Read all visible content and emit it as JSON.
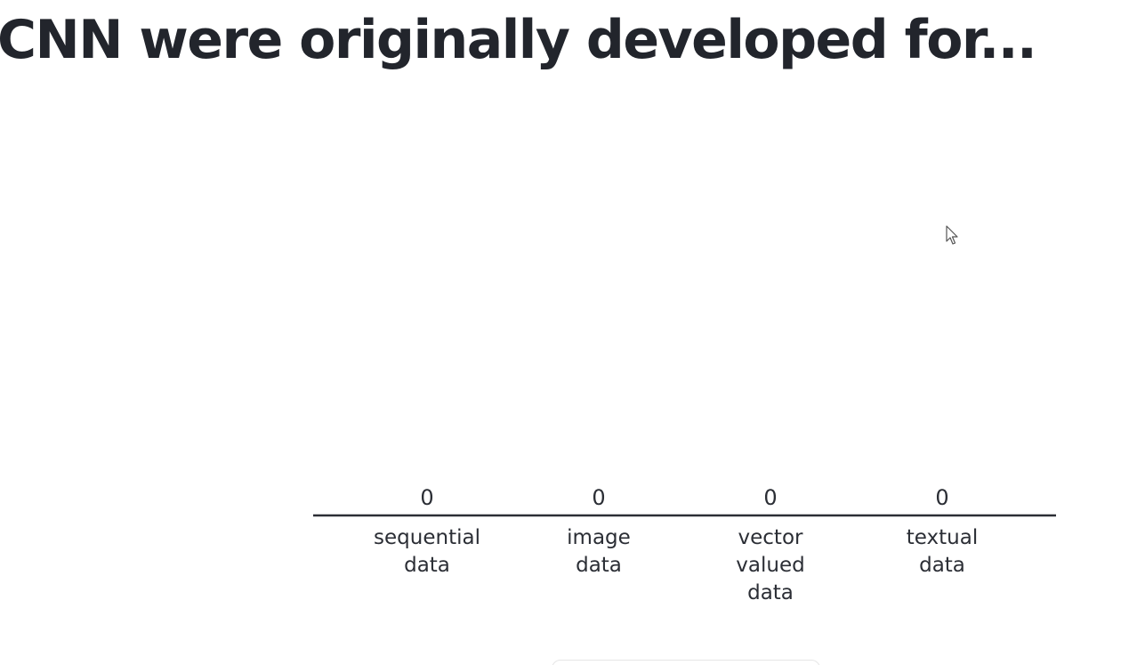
{
  "slide": {
    "title": "CNN were originally developed for..."
  },
  "chart_data": {
    "type": "bar",
    "categories": [
      "sequential data",
      "image data",
      "vector valued data",
      "textual data"
    ],
    "category_lines": [
      [
        "sequential",
        "data"
      ],
      [
        "image",
        "data"
      ],
      [
        "vector",
        "valued",
        "data"
      ],
      [
        "textual",
        "data"
      ]
    ],
    "values": [
      0,
      0,
      0,
      0
    ],
    "value_labels": [
      "0",
      "0",
      "0",
      "0"
    ],
    "title": "",
    "xlabel": "",
    "ylabel": "",
    "grid": false,
    "legend": "none"
  },
  "colors": {
    "text": "#22252c",
    "axis": "#2b2e35",
    "bar": "#5b6b8c"
  },
  "icons": {
    "cursor": "mouse-pointer-icon"
  }
}
